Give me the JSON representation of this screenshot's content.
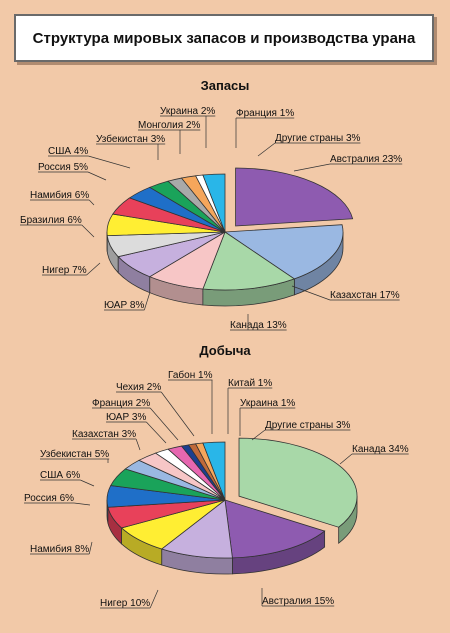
{
  "title": "Структура мировых запасов и производства урана",
  "chart_data": [
    {
      "type": "pie",
      "title": "Запасы",
      "slices": [
        {
          "label": "Австралия",
          "value": 23,
          "color": "#8e5bb0"
        },
        {
          "label": "Казахстан",
          "value": 17,
          "color": "#9ab8e2"
        },
        {
          "label": "Канада",
          "value": 13,
          "color": "#a8d8a8"
        },
        {
          "label": "ЮАР",
          "value": 8,
          "color": "#f7c6c6"
        },
        {
          "label": "Нигер",
          "value": 7,
          "color": "#c6b0de"
        },
        {
          "label": "Бразилия",
          "value": 6,
          "color": "#dcdcdc"
        },
        {
          "label": "Намибия",
          "value": 6,
          "color": "#ffee33"
        },
        {
          "label": "Россия",
          "value": 5,
          "color": "#e8415a"
        },
        {
          "label": "США",
          "value": 4,
          "color": "#1f6fc8"
        },
        {
          "label": "Узбекистан",
          "value": 3,
          "color": "#1aa35a"
        },
        {
          "label": "Монголия",
          "value": 2,
          "color": "#a9a9a9"
        },
        {
          "label": "Украина",
          "value": 2,
          "color": "#f5a65b"
        },
        {
          "label": "Франция",
          "value": 1,
          "color": "#ffffff"
        },
        {
          "label": "Другие страны",
          "value": 3,
          "color": "#29b6e8"
        }
      ]
    },
    {
      "type": "pie",
      "title": "Добыча",
      "slices": [
        {
          "label": "Канада",
          "value": 34,
          "color": "#a8d8a8"
        },
        {
          "label": "Австралия",
          "value": 15,
          "color": "#8e5bb0"
        },
        {
          "label": "Нигер",
          "value": 10,
          "color": "#c6b0de"
        },
        {
          "label": "Намибия",
          "value": 8,
          "color": "#ffee33"
        },
        {
          "label": "Россия",
          "value": 6,
          "color": "#e8415a"
        },
        {
          "label": "США",
          "value": 6,
          "color": "#1f6fc8"
        },
        {
          "label": "Узбекистан",
          "value": 5,
          "color": "#1aa35a"
        },
        {
          "label": "Казахстан",
          "value": 3,
          "color": "#9ab8e2"
        },
        {
          "label": "ЮАР",
          "value": 3,
          "color": "#f7c6c6"
        },
        {
          "label": "Франция",
          "value": 2,
          "color": "#ffffff"
        },
        {
          "label": "Чехия",
          "value": 2,
          "color": "#e667b0"
        },
        {
          "label": "Габон",
          "value": 1,
          "color": "#1b3f8f"
        },
        {
          "label": "Китай",
          "value": 1,
          "color": "#c06a3a"
        },
        {
          "label": "Украина",
          "value": 1,
          "color": "#f5a65b"
        },
        {
          "label": "Другие страны",
          "value": 3,
          "color": "#29b6e8"
        }
      ]
    }
  ]
}
